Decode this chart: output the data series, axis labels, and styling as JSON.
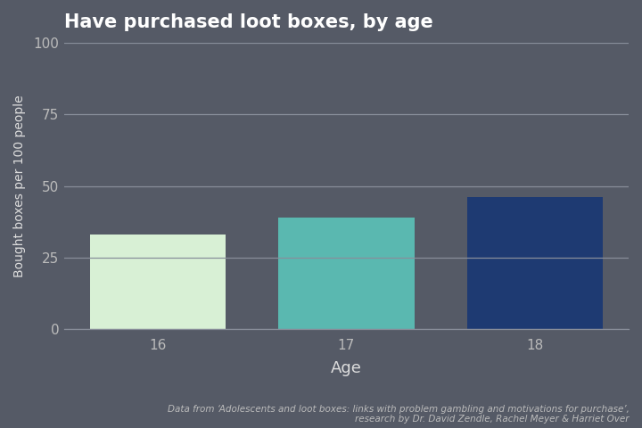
{
  "categories": [
    "16",
    "17",
    "18"
  ],
  "values": [
    33,
    39,
    46
  ],
  "bar_colors": [
    "#d8f0d5",
    "#5ab8b0",
    "#1e3a72"
  ],
  "background_color": "#555a66",
  "plot_bg_color": "#555a66",
  "title": "Have purchased loot boxes, by age",
  "title_color": "#ffffff",
  "title_fontsize": 15,
  "xlabel": "Age",
  "ylabel": "Bought boxes per 100 people",
  "axis_label_color": "#dddddd",
  "tick_label_color": "#bbbbbb",
  "grid_color": "#888e9a",
  "grid_linewidth": 0.9,
  "ylim": [
    0,
    100
  ],
  "yticks": [
    0,
    25,
    50,
    75,
    100
  ],
  "bar_width": 0.72,
  "caption_line1": "Data from ‘Adolescents and loot boxes: links with problem gambling and motivations for purchase’,",
  "caption_line2": "research by Dr. David Zendle, Rachel Meyer & Harriet Over",
  "caption_color": "#bbbbbb",
  "caption_fontsize": 7.5
}
